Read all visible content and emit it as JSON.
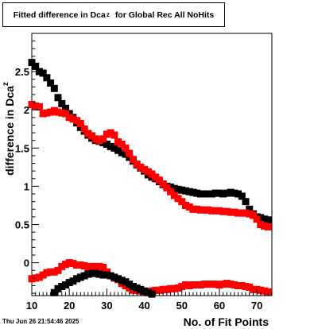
{
  "title": {
    "prefix": "Fitted difference in Dca",
    "subscript": "z",
    "suffix": "for Global Rec All NoHits"
  },
  "date_stamp": "Thu Jun 26 21:54:46 2025",
  "chart_data": {
    "type": "scatter",
    "xlabel": "No. of Fit Points",
    "ylabel_main": "difference in Dca",
    "ylabel_sub": "z",
    "xlim": [
      10,
      74
    ],
    "ylim": [
      -0.43,
      3.0
    ],
    "xticks": [
      10,
      20,
      30,
      40,
      50,
      60,
      70
    ],
    "yticks": [
      0,
      0.5,
      1,
      1.5,
      2,
      2.5
    ],
    "ytick_labels": [
      "0",
      "0.5",
      "1",
      "1.5",
      "2",
      "2.5"
    ],
    "grid": false,
    "colors": {
      "black_series": "#000000",
      "red_series": "#ff0000"
    },
    "series": [
      {
        "color": "#000000",
        "x": [
          10,
          11,
          12,
          13,
          14,
          15,
          16,
          17,
          18,
          19,
          20,
          21,
          22,
          23,
          24,
          25,
          26,
          27,
          28,
          29,
          30,
          31,
          32,
          33,
          34,
          35,
          36,
          37,
          38,
          39,
          40,
          41,
          42,
          43,
          44,
          45,
          46,
          47,
          48,
          49,
          50,
          51,
          52,
          53,
          54,
          55,
          56,
          57,
          58,
          59,
          60,
          61,
          62,
          63,
          64,
          65,
          66,
          67,
          68,
          69,
          70,
          71,
          72,
          73
        ],
        "y": [
          2.62,
          2.57,
          2.5,
          2.48,
          2.42,
          2.35,
          2.28,
          2.16,
          2.08,
          2.02,
          1.95,
          1.9,
          1.83,
          1.77,
          1.72,
          1.67,
          1.63,
          1.6,
          1.59,
          1.57,
          1.55,
          1.52,
          1.5,
          1.47,
          1.44,
          1.42,
          1.38,
          1.33,
          1.28,
          1.24,
          1.2,
          1.15,
          1.12,
          1.1,
          1.06,
          1.02,
          1.0,
          0.99,
          0.97,
          0.96,
          0.95,
          0.94,
          0.93,
          0.92,
          0.91,
          0.9,
          0.9,
          0.9,
          0.9,
          0.91,
          0.91,
          0.9,
          0.91,
          0.92,
          0.91,
          0.9,
          0.87,
          0.8,
          0.7,
          0.64,
          0.6,
          0.59,
          0.57,
          0.56
        ]
      },
      {
        "color": "#ff0000",
        "x": [
          10,
          11,
          12,
          13,
          14,
          15,
          16,
          17,
          18,
          19,
          20,
          21,
          22,
          23,
          24,
          25,
          26,
          27,
          28,
          29,
          30,
          31,
          32,
          33,
          34,
          35,
          36,
          37,
          38,
          39,
          40,
          41,
          42,
          43,
          44,
          45,
          46,
          47,
          48,
          49,
          50,
          51,
          52,
          53,
          54,
          55,
          56,
          57,
          58,
          59,
          60,
          61,
          62,
          63,
          64,
          65,
          66,
          67,
          68,
          69,
          70,
          71,
          72,
          73
        ],
        "y": [
          2.07,
          2.05,
          2.04,
          1.95,
          1.96,
          1.97,
          1.99,
          1.97,
          1.96,
          1.95,
          1.9,
          1.88,
          1.86,
          1.82,
          1.75,
          1.69,
          1.66,
          1.62,
          1.6,
          1.62,
          1.68,
          1.7,
          1.67,
          1.58,
          1.55,
          1.5,
          1.43,
          1.35,
          1.29,
          1.25,
          1.22,
          1.19,
          1.16,
          1.12,
          1.08,
          1.03,
          0.98,
          0.93,
          0.88,
          0.84,
          0.8,
          0.75,
          0.73,
          0.7,
          0.7,
          0.69,
          0.69,
          0.69,
          0.68,
          0.68,
          0.68,
          0.67,
          0.67,
          0.66,
          0.66,
          0.65,
          0.65,
          0.65,
          0.64,
          0.62,
          0.57,
          0.5,
          0.48,
          0.47
        ]
      },
      {
        "color": "#ff0000",
        "x": [
          10,
          11,
          12,
          13,
          14,
          15,
          16,
          17,
          18,
          19,
          20,
          21,
          22,
          23,
          24,
          25,
          26,
          27,
          28,
          29,
          30,
          31,
          32,
          33,
          34,
          35,
          36,
          37,
          38,
          39,
          40,
          41,
          42,
          43,
          44,
          45,
          46,
          47,
          48,
          49,
          50,
          51,
          52,
          53,
          54,
          55,
          56,
          57,
          58,
          59,
          60,
          61,
          62,
          63,
          64,
          65,
          66,
          67,
          68,
          69,
          70,
          71,
          72,
          73
        ],
        "y": [
          -0.21,
          -0.2,
          -0.19,
          -0.16,
          -0.13,
          -0.12,
          -0.12,
          -0.1,
          -0.05,
          -0.02,
          0.0,
          -0.01,
          -0.03,
          -0.03,
          -0.04,
          -0.06,
          -0.05,
          -0.05,
          -0.05,
          -0.06,
          -0.12,
          -0.17,
          -0.2,
          -0.22,
          -0.27,
          -0.3,
          -0.33,
          -0.36,
          -0.36,
          -0.37,
          -0.38,
          -0.38,
          -0.37,
          -0.36,
          -0.36,
          -0.35,
          -0.35,
          -0.34,
          -0.34,
          -0.33,
          -0.31,
          -0.29,
          -0.3,
          -0.29,
          -0.29,
          -0.29,
          -0.28,
          -0.28,
          -0.28,
          -0.28,
          -0.29,
          -0.28,
          -0.27,
          -0.28,
          -0.29,
          -0.3,
          -0.3,
          -0.31,
          -0.32,
          -0.35,
          -0.35,
          -0.36,
          -0.37,
          -0.38
        ]
      },
      {
        "color": "#000000",
        "x": [
          16,
          17,
          18,
          19,
          20,
          21,
          22,
          23,
          24,
          25,
          26,
          27,
          28,
          29,
          30,
          31,
          32,
          33,
          34,
          35,
          36,
          37,
          38,
          39,
          40,
          41,
          42
        ],
        "y": [
          -0.39,
          -0.34,
          -0.31,
          -0.29,
          -0.26,
          -0.24,
          -0.21,
          -0.19,
          -0.17,
          -0.15,
          -0.14,
          -0.14,
          -0.15,
          -0.16,
          -0.16,
          -0.17,
          -0.19,
          -0.21,
          -0.23,
          -0.25,
          -0.28,
          -0.31,
          -0.33,
          -0.35,
          -0.37,
          -0.39,
          -0.41
        ]
      }
    ]
  }
}
